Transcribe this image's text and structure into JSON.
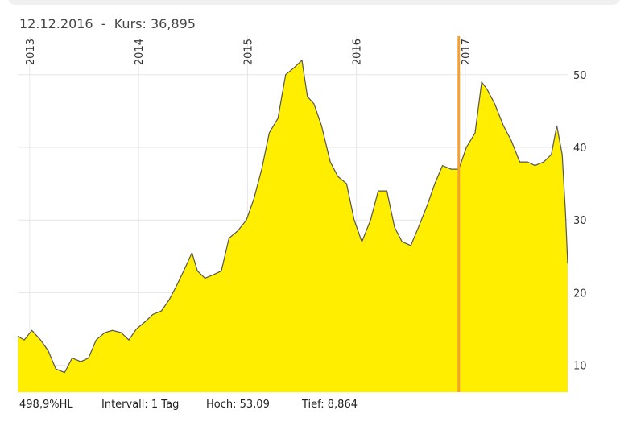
{
  "chart_data": {
    "type": "area",
    "header": "12.12.2016  -  Kurs: 36,895",
    "crosshair_x": 2016.94,
    "footer": [
      "498,9%HL",
      "Intervall: 1 Tag",
      "Hoch: 53,09",
      "Tief: 8,864"
    ],
    "x": [
      2012.89,
      2012.95,
      2013.02,
      2013.1,
      2013.17,
      2013.24,
      2013.32,
      2013.39,
      2013.47,
      2013.54,
      2013.61,
      2013.69,
      2013.76,
      2013.84,
      2013.91,
      2013.98,
      2014.06,
      2014.13,
      2014.21,
      2014.28,
      2014.35,
      2014.43,
      2014.49,
      2014.54,
      2014.61,
      2014.69,
      2014.76,
      2014.83,
      2014.91,
      2014.99,
      2015.06,
      2015.13,
      2015.2,
      2015.28,
      2015.35,
      2015.43,
      2015.5,
      2015.55,
      2015.61,
      2015.68,
      2015.76,
      2015.83,
      2015.91,
      2015.98,
      2016.05,
      2016.13,
      2016.2,
      2016.28,
      2016.35,
      2016.42,
      2016.5,
      2016.57,
      2016.65,
      2016.72,
      2016.79,
      2016.87,
      2016.94,
      2017.01,
      2017.09,
      2017.15,
      2017.2,
      2017.27,
      2017.35,
      2017.42,
      2017.5,
      2017.57,
      2017.64,
      2017.72,
      2017.79,
      2017.84,
      2017.89,
      2017.92,
      2017.94
    ],
    "values": [
      14,
      13.5,
      14.8,
      13.5,
      12,
      9.5,
      9,
      11,
      10.5,
      11,
      13.5,
      14.5,
      14.8,
      14.5,
      13.5,
      15,
      16,
      17,
      17.5,
      19,
      21,
      23.5,
      25.5,
      23,
      22,
      22.5,
      23,
      27.5,
      28.5,
      30,
      33,
      37,
      42,
      44,
      50,
      51,
      52,
      47,
      46,
      43,
      38,
      36,
      35,
      30,
      27,
      30,
      34,
      34,
      29,
      27,
      26.5,
      29,
      32,
      35,
      37.5,
      37,
      37,
      40,
      42,
      49,
      48,
      46,
      43,
      41,
      38,
      38,
      37.5,
      38,
      39,
      43,
      39,
      31,
      24
    ],
    "fill_color": "#ffee00",
    "line_color": "#555555",
    "crosshair_color": "#f5a033",
    "xlim": [
      2012.89,
      2017.94
    ],
    "ylim": [
      6.3,
      55.3
    ],
    "xticks": [
      2013,
      2014,
      2015,
      2016,
      2017
    ],
    "yticks": [
      10,
      20,
      30,
      40,
      50
    ],
    "grid": true
  }
}
